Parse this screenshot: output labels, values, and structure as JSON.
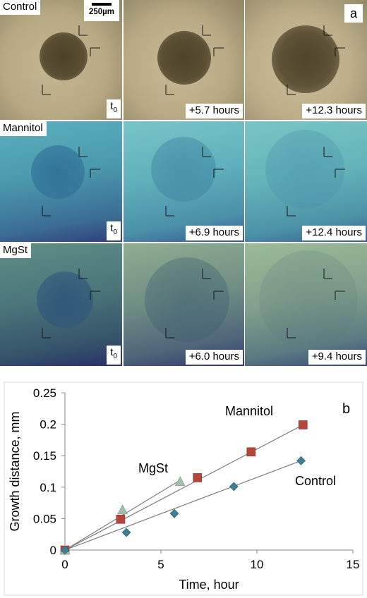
{
  "figure_a": {
    "letter": "a",
    "scale_bar": "250µm",
    "rows": [
      {
        "label": "Control",
        "times": [
          {
            "base": "t",
            "sub": "0"
          },
          {
            "base": "+5.7 hours",
            "sub": ""
          },
          {
            "base": "+12.3 hours",
            "sub": ""
          }
        ]
      },
      {
        "label": "Mannitol",
        "times": [
          {
            "base": "t",
            "sub": "0"
          },
          {
            "base": "+6.9 hours",
            "sub": ""
          },
          {
            "base": "+12.4 hours",
            "sub": ""
          }
        ]
      },
      {
        "label": "MgSt",
        "times": [
          {
            "base": "t",
            "sub": "0"
          },
          {
            "base": "+6.0 hours",
            "sub": ""
          },
          {
            "base": "+9.4 hours",
            "sub": ""
          }
        ]
      }
    ]
  },
  "chart_data": {
    "type": "scatter",
    "panel_letter": "b",
    "title": "",
    "xlabel": "Time, hour",
    "ylabel": "Growth distance, mm",
    "xlim": [
      0,
      15
    ],
    "ylim": [
      0,
      0.25
    ],
    "xticks": [
      "0",
      "5",
      "10",
      "15"
    ],
    "yticks": [
      "0",
      "0.05",
      "0.1",
      "0.15",
      "0.2",
      "0.25"
    ],
    "grid": false,
    "legend": "none",
    "series": [
      {
        "name": "Mannitol",
        "marker": "square",
        "color": "#b5473a",
        "x": [
          0,
          2.9,
          6.9,
          9.7,
          12.4
        ],
        "y": [
          0,
          0.049,
          0.115,
          0.156,
          0.199
        ],
        "fit": [
          [
            0,
            0
          ],
          [
            12.4,
            0.199
          ]
        ]
      },
      {
        "name": "MgSt",
        "marker": "triangle",
        "color": "#9fbfa8",
        "x": [
          0,
          3.0,
          6.0
        ],
        "y": [
          0,
          0.064,
          0.109
        ],
        "fit": [
          [
            0,
            0
          ],
          [
            6.0,
            0.111
          ]
        ]
      },
      {
        "name": "Control",
        "marker": "diamond",
        "color": "#3e7f95",
        "x": [
          0,
          3.2,
          5.7,
          8.8,
          12.3
        ],
        "y": [
          0,
          0.028,
          0.058,
          0.101,
          0.142
        ],
        "fit": [
          [
            0,
            0
          ],
          [
            12.3,
            0.142
          ]
        ]
      }
    ]
  }
}
